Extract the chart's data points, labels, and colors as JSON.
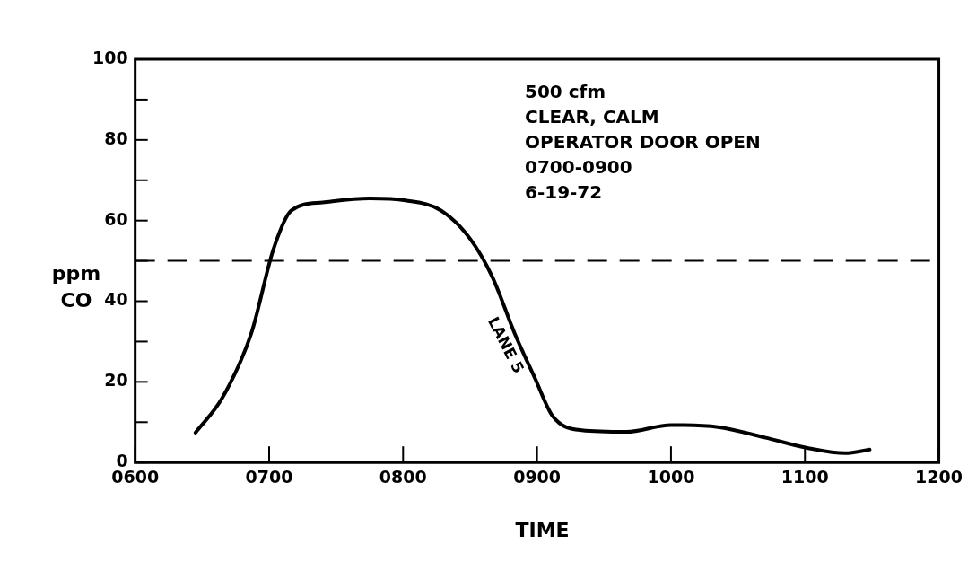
{
  "chart_data": {
    "type": "line",
    "xlabel": "TIME",
    "ylabel": "ppm CO",
    "xlim": [
      "--06-19T06:00",
      "--06-19T12:00"
    ],
    "xticks": [
      {
        "value": "--06-19T06:00",
        "label": "0600"
      },
      {
        "value": "--06-19T07:00",
        "label": "0700"
      },
      {
        "value": "--06-19T08:00",
        "label": "0800"
      },
      {
        "value": "--06-19T09:00",
        "label": "0900"
      },
      {
        "value": "--06-19T10:00",
        "label": "1000"
      },
      {
        "value": "--06-19T11:00",
        "label": "1100"
      },
      {
        "value": "--06-19T12:00",
        "label": "1200"
      }
    ],
    "ylim": [
      0,
      100
    ],
    "yticks": [
      0,
      {
        "value": 10,
        "label": null
      },
      20,
      {
        "value": 30,
        "label": null
      },
      40,
      {
        "value": 50,
        "label": null
      },
      60,
      {
        "value": 70,
        "label": null
      },
      80,
      {
        "value": 90,
        "label": null
      },
      100
    ],
    "series": [
      {
        "color": "#000000",
        "x": [
          "--06-19T06:27",
          "--06-19T06:39",
          "--06-19T06:52",
          "--06-19T07:02",
          "--06-19T07:10",
          "--06-19T07:24",
          "--06-19T07:45",
          "--06-19T08:01",
          "--06-19T08:17",
          "--06-19T08:30",
          "--06-19T08:40",
          "--06-19T08:50",
          "--06-19T08:59",
          "--06-19T09:07",
          "--06-19T09:20",
          "--06-19T09:40",
          "--06-19T10:00",
          "--06-19T10:21",
          "--06-19T10:42",
          "--06-19T11:02",
          "--06-19T11:18",
          "--06-19T11:29"
        ],
        "values": [
          7.4,
          16,
          32,
          53,
          62.5,
          64.5,
          65.5,
          65,
          62.5,
          55.5,
          46,
          32,
          21,
          11.5,
          8,
          7.6,
          9.3,
          8.8,
          6.2,
          3.5,
          2.3,
          3.2
        ]
      }
    ],
    "ref_lines": [
      {
        "axis": "y",
        "value": 50,
        "line_style": "dashed"
      }
    ],
    "marker": "none",
    "line_style": "solid",
    "grid": false,
    "legend": false,
    "annotations": [
      "500 cfm",
      "CLEAR, CALM",
      "OPERATOR DOOR OPEN 0700-0900",
      "6-19-72",
      "LANE 5"
    ]
  }
}
